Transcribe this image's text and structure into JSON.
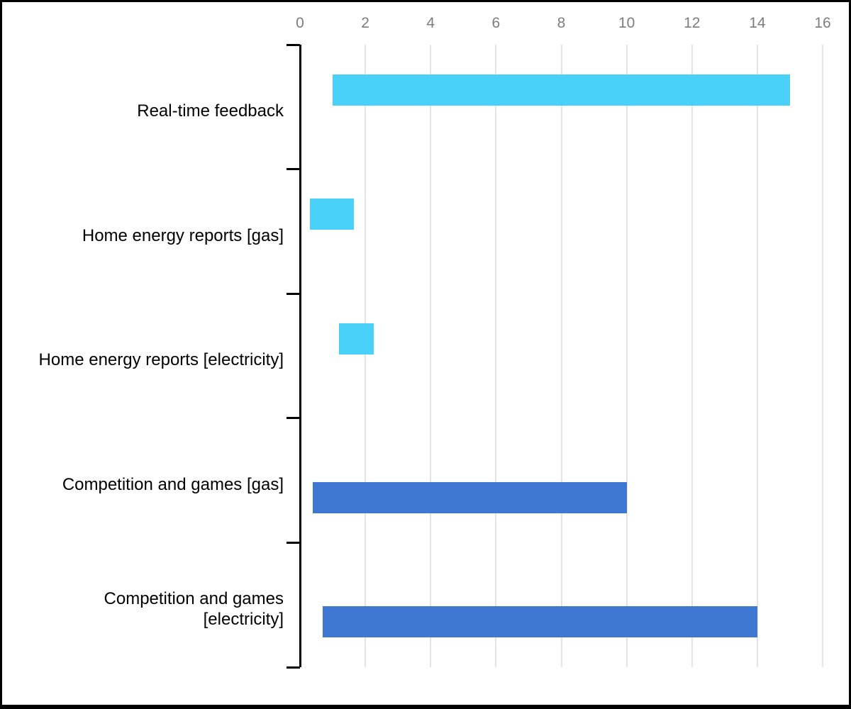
{
  "chart_data": {
    "type": "bar",
    "orientation": "horizontal",
    "subtype": "range-bars",
    "title": "",
    "xlabel": "",
    "ylabel": "",
    "xlim": [
      0,
      16
    ],
    "xticks": [
      "0",
      "2",
      "4",
      "6",
      "8",
      "10",
      "12",
      "14",
      "16"
    ],
    "xtick_values": [
      0,
      2,
      4,
      6,
      8,
      10,
      12,
      14,
      16
    ],
    "grid": true,
    "legend_position": "none",
    "categories": [
      "Real-time feedback",
      "Home energy reports [gas]",
      "Home energy reports [electricity]",
      "Competition and games [gas]",
      "Competition and games [electricity]"
    ],
    "category_display": [
      "Real-time feedback",
      "Home energy reports [gas]",
      "Home energy reports [electricity]",
      "Competition and games [gas]",
      "Competition and games\n[electricity]"
    ],
    "bars": [
      {
        "category": "Real-time feedback",
        "start": 1.0,
        "end": 15.0,
        "series": 0
      },
      {
        "category": "Home energy reports [gas]",
        "start": 0.3,
        "end": 1.65,
        "series": 0
      },
      {
        "category": "Home energy reports [electricity]",
        "start": 1.2,
        "end": 2.25,
        "series": 0
      },
      {
        "category": "Competition and games [gas]",
        "start": 0.4,
        "end": 10.0,
        "series": 1
      },
      {
        "category": "Competition and games [electricity]",
        "start": 0.7,
        "end": 14.0,
        "series": 1
      }
    ],
    "colors": {
      "series": [
        "#49d1fa",
        "#3e78d3"
      ],
      "grid": "#e3e3e3",
      "axis": "#000000",
      "tick_label": "#7d7d7d",
      "category_label": "#000000",
      "background": "#ffffff",
      "border": "#000000"
    }
  }
}
